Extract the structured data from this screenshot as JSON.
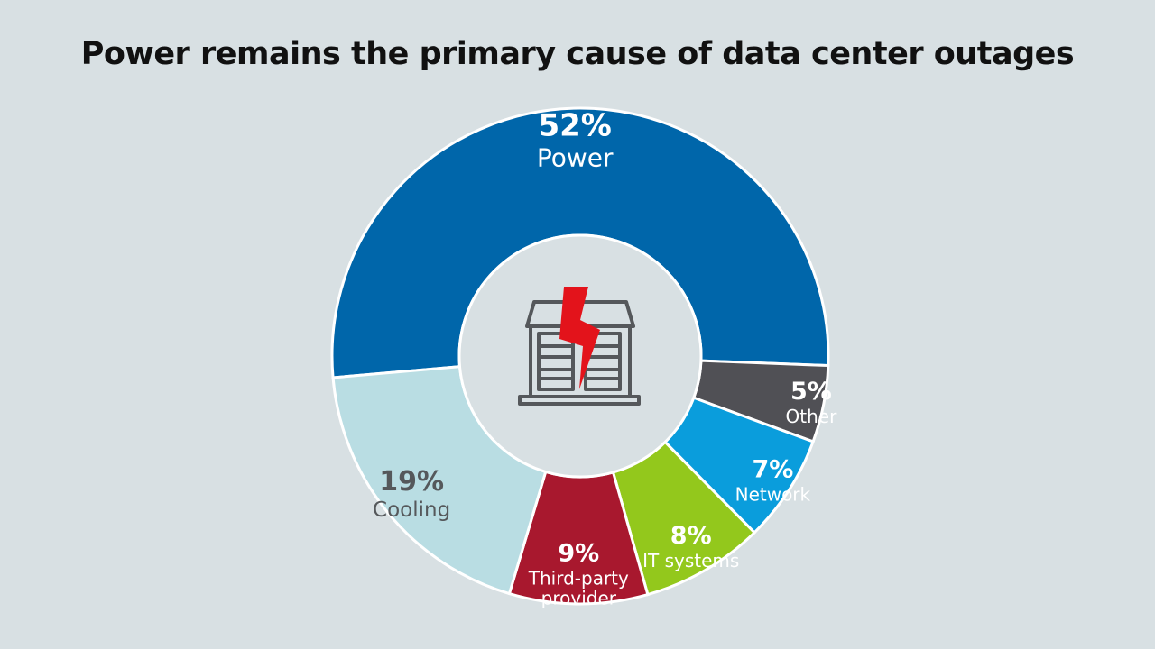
{
  "title": "Power remains the primary cause of data center outages",
  "chart_data": {
    "type": "pie",
    "subtype": "donut",
    "title": "Power remains the primary cause of data center outages",
    "categories": [
      "Power",
      "Other",
      "Network",
      "IT systems",
      "Third-party provider",
      "Cooling"
    ],
    "values": [
      52,
      5,
      7,
      8,
      9,
      19
    ],
    "value_labels": [
      "52%",
      "5%",
      "7%",
      "8%",
      "9%",
      "19%"
    ],
    "label_lines": [
      [
        "Power"
      ],
      [
        "Other"
      ],
      [
        "Network"
      ],
      [
        "IT systems"
      ],
      [
        "Third-party",
        "provider"
      ],
      [
        "Cooling"
      ]
    ],
    "colors": [
      "#0066aa",
      "#505055",
      "#0a9ddc",
      "#93c81c",
      "#a8182e",
      "#b9dde3"
    ],
    "label_colors": [
      "#ffffff",
      "#ffffff",
      "#ffffff",
      "#ffffff",
      "#ffffff",
      "#55585b"
    ],
    "center_icon": "data-center-power-outage-icon"
  }
}
